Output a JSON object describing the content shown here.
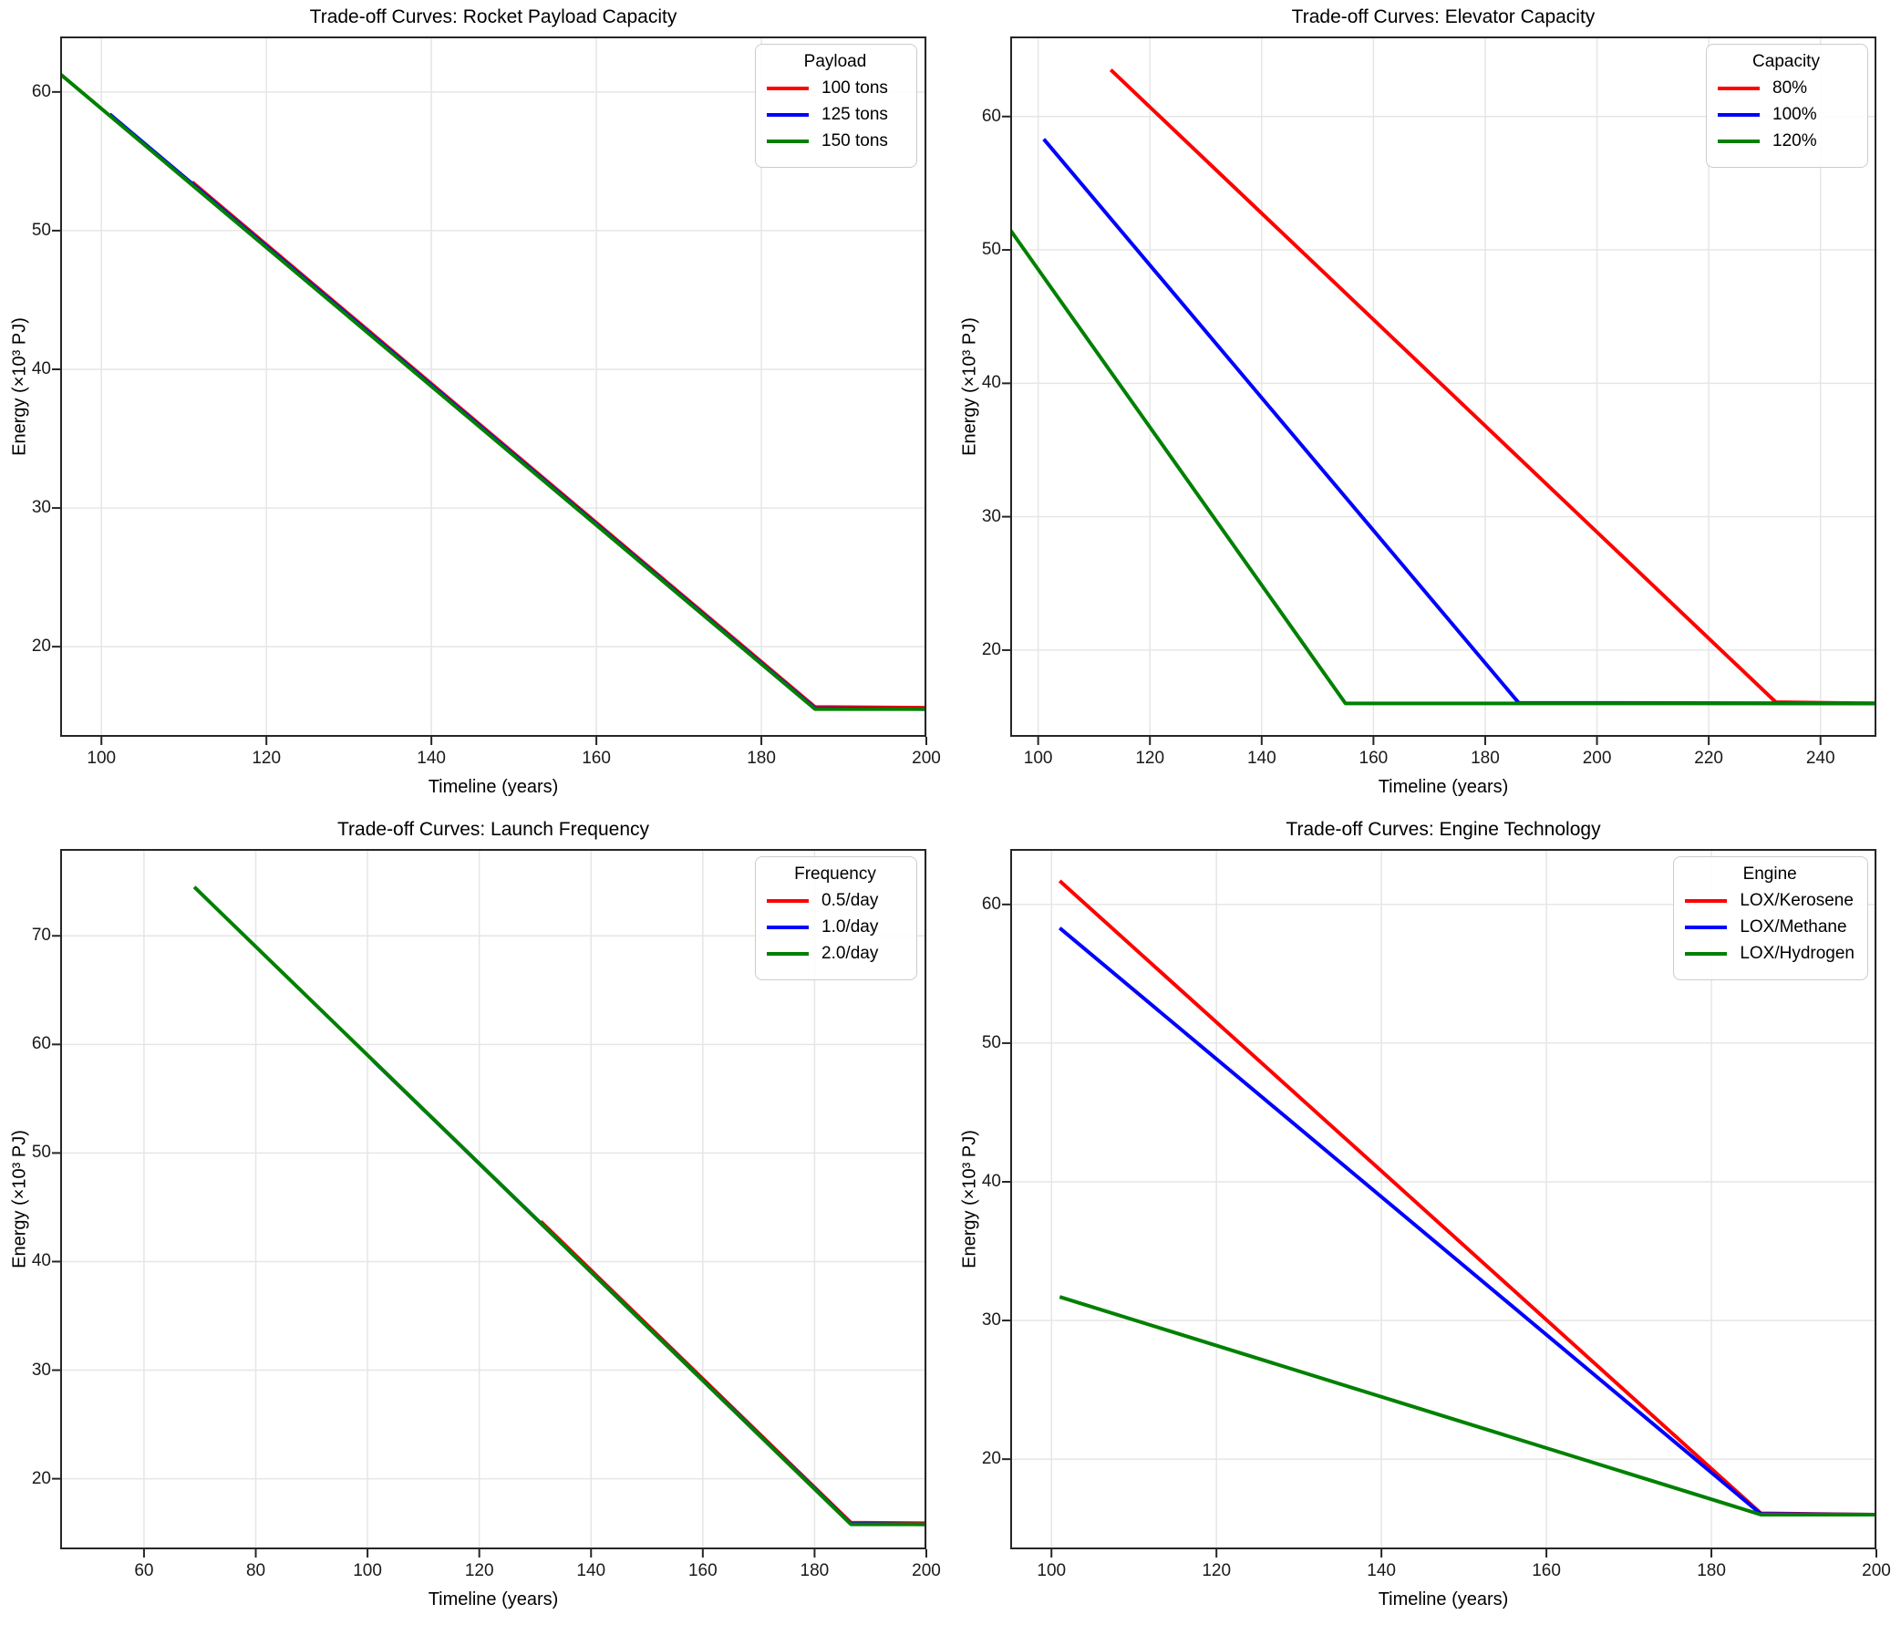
{
  "style": {
    "background": "#ffffff",
    "spine_color": "#262626",
    "grid_color": "#e6e6e6",
    "text_color": "#000000",
    "series_red": "#ff0000",
    "series_blue": "#0000ff",
    "series_green": "#008000"
  },
  "figure": {
    "rows": 2,
    "cols": 2
  },
  "chart_data": [
    {
      "type": "line",
      "title": "Trade-off Curves: Rocket Payload Capacity",
      "xlabel": "Timeline (years)",
      "ylabel": "Energy (×10³ PJ)",
      "xlim": [
        95,
        200
      ],
      "ylim": [
        13.5,
        64
      ],
      "xticks": [
        100,
        120,
        140,
        160,
        180,
        200
      ],
      "yticks": [
        20,
        30,
        40,
        50,
        60
      ],
      "grid": true,
      "legend": {
        "title": "Payload",
        "position": "top-right"
      },
      "series": [
        {
          "name": "100 tons",
          "color": "#ff0000",
          "points": [
            [
              111,
              53.5
            ],
            [
              186.5,
              15.65
            ],
            [
              200,
              15.6
            ]
          ]
        },
        {
          "name": "125 tons",
          "color": "#0000ff",
          "points": [
            [
              101,
              58.4
            ],
            [
              186.5,
              15.55
            ],
            [
              200,
              15.5
            ]
          ]
        },
        {
          "name": "150 tons",
          "color": "#008000",
          "points": [
            [
              95,
              61.3
            ],
            [
              186.5,
              15.5
            ],
            [
              200,
              15.5
            ]
          ]
        }
      ]
    },
    {
      "type": "line",
      "title": "Trade-off Curves: Elevator Capacity",
      "xlabel": "Timeline (years)",
      "ylabel": "Energy (×10³ PJ)",
      "xlim": [
        95,
        250
      ],
      "ylim": [
        13.5,
        66
      ],
      "xticks": [
        100,
        120,
        140,
        160,
        180,
        200,
        220,
        240
      ],
      "yticks": [
        20,
        30,
        40,
        50,
        60
      ],
      "grid": true,
      "legend": {
        "title": "Capacity",
        "position": "top-right"
      },
      "series": [
        {
          "name": "80%",
          "color": "#ff0000",
          "points": [
            [
              113,
              63.5
            ],
            [
              232,
              16.1
            ],
            [
              250,
              16.0
            ]
          ]
        },
        {
          "name": "100%",
          "color": "#0000ff",
          "points": [
            [
              101,
              58.3
            ],
            [
              186,
              16.05
            ],
            [
              250,
              16.0
            ]
          ]
        },
        {
          "name": "120%",
          "color": "#008000",
          "points": [
            [
              95,
              51.5
            ],
            [
              155,
              16.0
            ],
            [
              250,
              16.0
            ]
          ]
        }
      ]
    },
    {
      "type": "line",
      "title": "Trade-off Curves: Launch Frequency",
      "xlabel": "Timeline (years)",
      "ylabel": "Energy (×10³ PJ)",
      "xlim": [
        45,
        200
      ],
      "ylim": [
        13.5,
        78
      ],
      "xticks": [
        60,
        80,
        100,
        120,
        140,
        160,
        180,
        200
      ],
      "yticks": [
        20,
        30,
        40,
        50,
        60,
        70
      ],
      "grid": true,
      "legend": {
        "title": "Frequency",
        "position": "top-right"
      },
      "series": [
        {
          "name": "0.5/day",
          "color": "#ff0000",
          "points": [
            [
              131,
              43.7
            ],
            [
              186.5,
              15.95
            ],
            [
              200,
              15.9
            ]
          ]
        },
        {
          "name": "1.0/day",
          "color": "#0000ff",
          "points": [
            [
              101,
              58.5
            ],
            [
              186.5,
              15.85
            ],
            [
              200,
              15.8
            ]
          ]
        },
        {
          "name": "2.0/day",
          "color": "#008000",
          "points": [
            [
              69,
              74.5
            ],
            [
              186.5,
              15.8
            ],
            [
              200,
              15.8
            ]
          ]
        }
      ]
    },
    {
      "type": "line",
      "title": "Trade-off Curves: Engine Technology",
      "xlabel": "Timeline (years)",
      "ylabel": "Energy (×10³ PJ)",
      "xlim": [
        95,
        200
      ],
      "ylim": [
        13.5,
        64
      ],
      "xticks": [
        100,
        120,
        140,
        160,
        180,
        200
      ],
      "yticks": [
        20,
        30,
        40,
        50,
        60
      ],
      "grid": true,
      "legend": {
        "title": "Engine",
        "position": "top-right"
      },
      "series": [
        {
          "name": "LOX/Kerosene",
          "color": "#ff0000",
          "points": [
            [
              101,
              61.7
            ],
            [
              186,
              16.1
            ],
            [
              200,
              16.0
            ]
          ]
        },
        {
          "name": "LOX/Methane",
          "color": "#0000ff",
          "points": [
            [
              101,
              58.3
            ],
            [
              186,
              16.05
            ],
            [
              200,
              16.0
            ]
          ]
        },
        {
          "name": "LOX/Hydrogen",
          "color": "#008000",
          "points": [
            [
              101,
              31.7
            ],
            [
              186,
              16.0
            ],
            [
              200,
              16.0
            ]
          ]
        }
      ]
    }
  ]
}
